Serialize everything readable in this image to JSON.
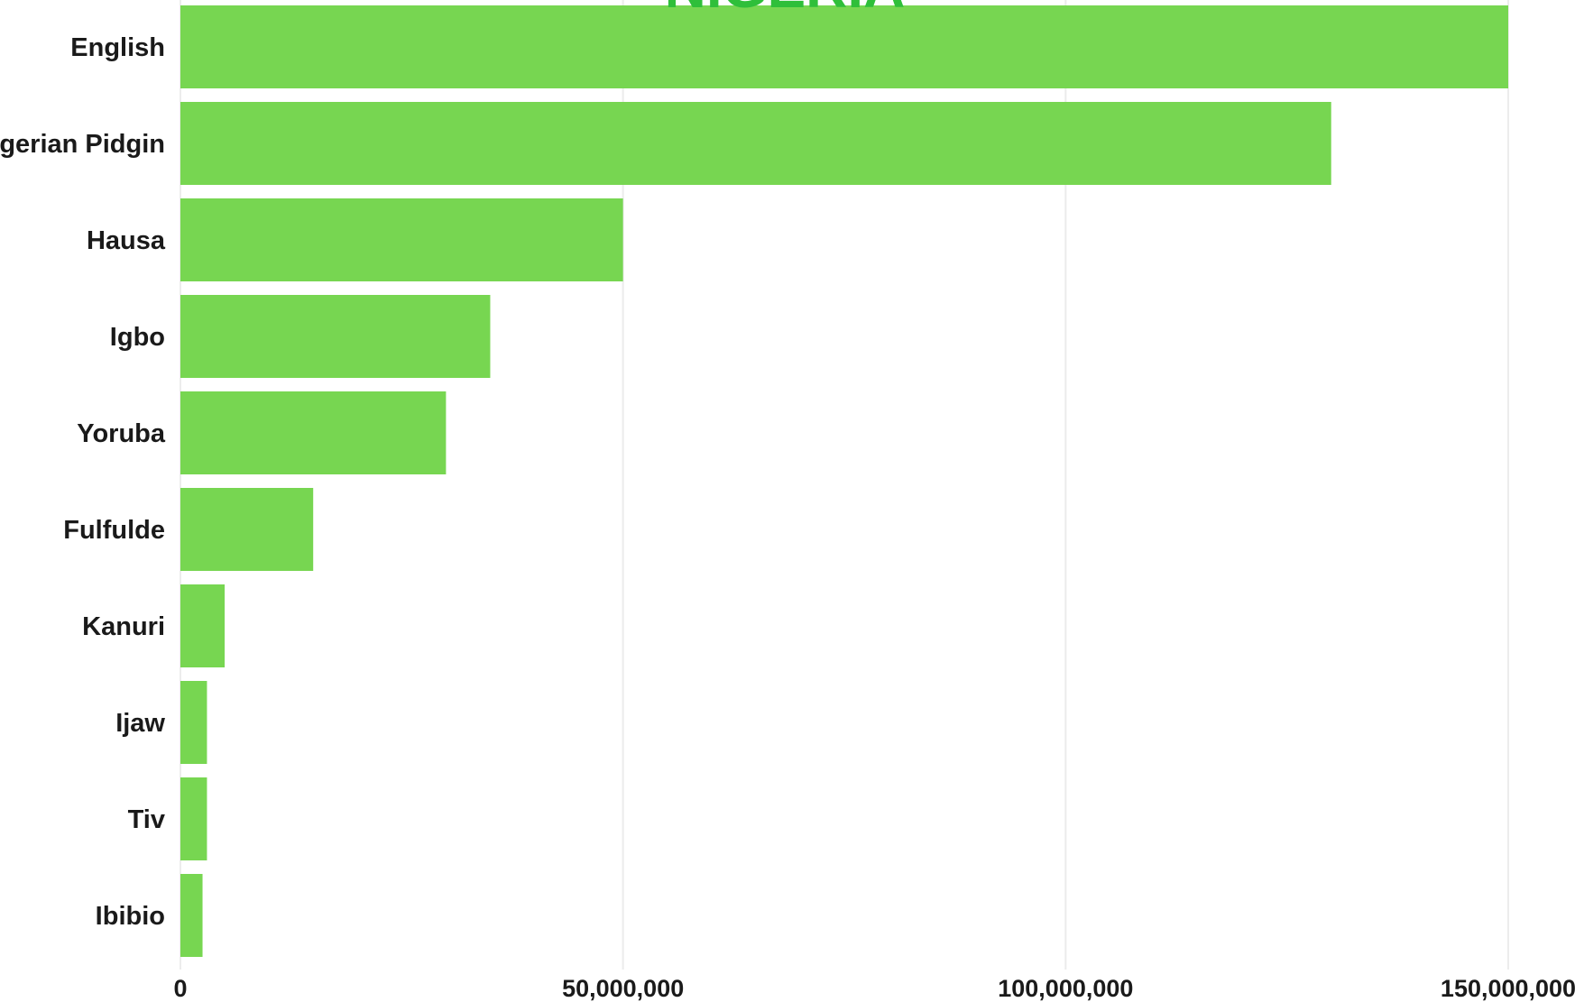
{
  "chart_data": {
    "type": "bar",
    "orientation": "horizontal",
    "title": "NIGERIA",
    "categories": [
      "English",
      "Nigerian Pidgin",
      "Hausa",
      "Igbo",
      "Yoruba",
      "Fulfulde",
      "Kanuri",
      "Ijaw",
      "Tiv",
      "Ibibio"
    ],
    "values": [
      150000000,
      130000000,
      50000000,
      35000000,
      30000000,
      15000000,
      5000000,
      3000000,
      3000000,
      2500000
    ],
    "xlim": [
      0,
      150000000
    ],
    "xticks": [
      0,
      50000000,
      100000000,
      150000000
    ],
    "xtick_labels": [
      "0",
      "50,000,000",
      "100,000,000",
      "150,000,000"
    ],
    "xlabel": "",
    "ylabel": "",
    "grid": true,
    "bar_color": "#77d651",
    "title_color": "#2fbf3a",
    "legend": "none"
  }
}
